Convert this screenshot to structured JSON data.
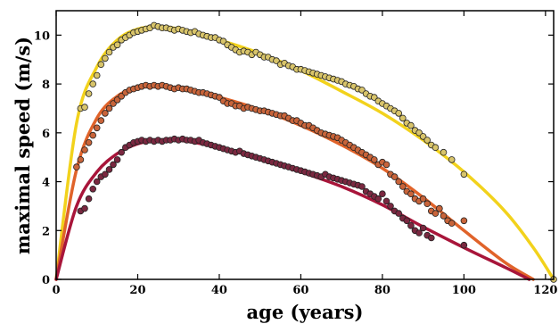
{
  "chart_data": {
    "type": "scatter",
    "title": "",
    "xlabel": "age (years)",
    "ylabel": "maximal speed (m/s)",
    "xlim": [
      0,
      122
    ],
    "ylim": [
      0,
      11
    ],
    "xticks": [
      0,
      20,
      40,
      60,
      80,
      100,
      120
    ],
    "yticks": [
      0,
      2,
      4,
      6,
      8,
      10
    ],
    "grid": false,
    "legend": "none",
    "series": [
      {
        "color": "#f2d21c",
        "marker_fill": "#d8c46a",
        "points": [
          [
            6,
            7.0
          ],
          [
            7,
            7.05
          ],
          [
            8,
            7.6
          ],
          [
            9,
            8.0
          ],
          [
            10,
            8.35
          ],
          [
            11,
            8.8
          ],
          [
            12,
            9.05
          ],
          [
            13,
            9.3
          ],
          [
            14,
            9.5
          ],
          [
            15,
            9.6
          ],
          [
            16,
            9.8
          ],
          [
            17,
            9.9
          ],
          [
            18,
            10.0
          ],
          [
            19,
            10.1
          ],
          [
            20,
            10.15
          ],
          [
            21,
            10.2
          ],
          [
            22,
            10.25
          ],
          [
            23,
            10.3
          ],
          [
            24,
            10.4
          ],
          [
            25,
            10.35
          ],
          [
            26,
            10.3
          ],
          [
            27,
            10.3
          ],
          [
            28,
            10.25
          ],
          [
            29,
            10.2
          ],
          [
            30,
            10.25
          ],
          [
            31,
            10.2
          ],
          [
            32,
            10.15
          ],
          [
            33,
            10.1
          ],
          [
            34,
            10.15
          ],
          [
            35,
            10.05
          ],
          [
            36,
            10.0
          ],
          [
            37,
            9.95
          ],
          [
            38,
            9.9
          ],
          [
            39,
            9.9
          ],
          [
            40,
            9.8
          ],
          [
            41,
            9.75
          ],
          [
            42,
            9.6
          ],
          [
            43,
            9.5
          ],
          [
            44,
            9.4
          ],
          [
            45,
            9.3
          ],
          [
            46,
            9.35
          ],
          [
            47,
            9.3
          ],
          [
            48,
            9.2
          ],
          [
            49,
            9.3
          ],
          [
            50,
            9.2
          ],
          [
            51,
            9.1
          ],
          [
            52,
            9.1
          ],
          [
            53,
            9.0
          ],
          [
            54,
            8.95
          ],
          [
            55,
            8.8
          ],
          [
            56,
            8.85
          ],
          [
            57,
            8.75
          ],
          [
            58,
            8.7
          ],
          [
            59,
            8.6
          ],
          [
            60,
            8.6
          ],
          [
            61,
            8.55
          ],
          [
            62,
            8.5
          ],
          [
            63,
            8.45
          ],
          [
            64,
            8.4
          ],
          [
            65,
            8.35
          ],
          [
            66,
            8.3
          ],
          [
            67,
            8.25
          ],
          [
            68,
            8.2
          ],
          [
            69,
            8.15
          ],
          [
            70,
            8.1
          ],
          [
            71,
            8.0
          ],
          [
            72,
            7.95
          ],
          [
            73,
            7.9
          ],
          [
            74,
            7.8
          ],
          [
            75,
            7.75
          ],
          [
            76,
            7.6
          ],
          [
            77,
            7.5
          ],
          [
            78,
            7.45
          ],
          [
            79,
            7.3
          ],
          [
            80,
            7.2
          ],
          [
            81,
            7.1
          ],
          [
            82,
            7.0
          ],
          [
            83,
            6.9
          ],
          [
            84,
            6.8
          ],
          [
            85,
            6.6
          ],
          [
            86,
            6.4
          ],
          [
            87,
            6.3
          ],
          [
            88,
            6.1
          ],
          [
            89,
            6.0
          ],
          [
            90,
            5.85
          ],
          [
            91,
            5.7
          ],
          [
            92,
            5.5
          ],
          [
            93,
            5.4
          ],
          [
            95,
            5.2
          ],
          [
            97,
            4.9
          ],
          [
            100,
            4.3
          ],
          [
            122,
            0.0
          ]
        ],
        "fit": [
          [
            0,
            0.0
          ],
          [
            5,
            6.4
          ],
          [
            10,
            8.7
          ],
          [
            15,
            9.8
          ],
          [
            20,
            10.25
          ],
          [
            25,
            10.35
          ],
          [
            30,
            10.25
          ],
          [
            40,
            9.8
          ],
          [
            50,
            9.25
          ],
          [
            60,
            8.55
          ],
          [
            70,
            7.7
          ],
          [
            80,
            6.8
          ],
          [
            90,
            5.7
          ],
          [
            100,
            4.4
          ],
          [
            110,
            2.8
          ],
          [
            117,
            1.3
          ],
          [
            122,
            0.0
          ]
        ]
      },
      {
        "color": "#e0632a",
        "marker_fill": "#c8643a",
        "points": [
          [
            5,
            4.6
          ],
          [
            6,
            4.9
          ],
          [
            7,
            5.3
          ],
          [
            8,
            5.6
          ],
          [
            9,
            5.9
          ],
          [
            10,
            6.2
          ],
          [
            11,
            6.5
          ],
          [
            12,
            6.8
          ],
          [
            13,
            7.0
          ],
          [
            14,
            7.2
          ],
          [
            15,
            7.35
          ],
          [
            16,
            7.5
          ],
          [
            17,
            7.65
          ],
          [
            18,
            7.75
          ],
          [
            19,
            7.8
          ],
          [
            20,
            7.85
          ],
          [
            21,
            7.9
          ],
          [
            22,
            7.95
          ],
          [
            23,
            7.9
          ],
          [
            24,
            7.95
          ],
          [
            25,
            7.9
          ],
          [
            26,
            7.95
          ],
          [
            27,
            7.9
          ],
          [
            28,
            7.85
          ],
          [
            29,
            7.8
          ],
          [
            30,
            7.85
          ],
          [
            31,
            7.8
          ],
          [
            32,
            7.8
          ],
          [
            33,
            7.75
          ],
          [
            34,
            7.7
          ],
          [
            35,
            7.65
          ],
          [
            36,
            7.65
          ],
          [
            37,
            7.6
          ],
          [
            38,
            7.55
          ],
          [
            39,
            7.5
          ],
          [
            40,
            7.45
          ],
          [
            41,
            7.3
          ],
          [
            42,
            7.2
          ],
          [
            43,
            7.2
          ],
          [
            44,
            7.1
          ],
          [
            45,
            7.1
          ],
          [
            46,
            7.0
          ],
          [
            47,
            7.05
          ],
          [
            48,
            7.0
          ],
          [
            49,
            6.95
          ],
          [
            50,
            6.9
          ],
          [
            51,
            6.9
          ],
          [
            52,
            6.85
          ],
          [
            53,
            6.8
          ],
          [
            54,
            6.75
          ],
          [
            55,
            6.7
          ],
          [
            56,
            6.7
          ],
          [
            57,
            6.6
          ],
          [
            58,
            6.5
          ],
          [
            59,
            6.5
          ],
          [
            60,
            6.4
          ],
          [
            61,
            6.3
          ],
          [
            62,
            6.3
          ],
          [
            63,
            6.2
          ],
          [
            64,
            6.1
          ],
          [
            65,
            6.0
          ],
          [
            66,
            5.95
          ],
          [
            67,
            5.9
          ],
          [
            68,
            5.85
          ],
          [
            69,
            5.8
          ],
          [
            70,
            5.7
          ],
          [
            71,
            5.6
          ],
          [
            72,
            5.5
          ],
          [
            73,
            5.4
          ],
          [
            74,
            5.3
          ],
          [
            75,
            5.2
          ],
          [
            76,
            5.1
          ],
          [
            77,
            5.0
          ],
          [
            78,
            4.9
          ],
          [
            79,
            4.7
          ],
          [
            80,
            4.8
          ],
          [
            81,
            4.7
          ],
          [
            82,
            4.3
          ],
          [
            83,
            4.2
          ],
          [
            84,
            4.0
          ],
          [
            85,
            3.8
          ],
          [
            86,
            3.6
          ],
          [
            87,
            3.5
          ],
          [
            88,
            3.3
          ],
          [
            89,
            3.2
          ],
          [
            90,
            3.3
          ],
          [
            91,
            3.1
          ],
          [
            92,
            2.8
          ],
          [
            93,
            2.7
          ],
          [
            94,
            2.9
          ],
          [
            95,
            2.6
          ],
          [
            96,
            2.4
          ],
          [
            97,
            2.3
          ],
          [
            100,
            2.4
          ]
        ],
        "fit": [
          [
            0,
            0.0
          ],
          [
            5,
            4.5
          ],
          [
            10,
            6.6
          ],
          [
            15,
            7.5
          ],
          [
            20,
            7.85
          ],
          [
            25,
            7.9
          ],
          [
            30,
            7.8
          ],
          [
            40,
            7.45
          ],
          [
            50,
            6.95
          ],
          [
            60,
            6.3
          ],
          [
            70,
            5.5
          ],
          [
            80,
            4.55
          ],
          [
            90,
            3.35
          ],
          [
            100,
            2.0
          ],
          [
            110,
            0.7
          ],
          [
            117,
            0.0
          ]
        ]
      },
      {
        "color": "#a8153a",
        "marker_fill": "#7a2840",
        "points": [
          [
            6,
            2.8
          ],
          [
            7,
            2.9
          ],
          [
            8,
            3.3
          ],
          [
            9,
            3.7
          ],
          [
            10,
            4.0
          ],
          [
            11,
            4.2
          ],
          [
            12,
            4.3
          ],
          [
            13,
            4.5
          ],
          [
            14,
            4.7
          ],
          [
            15,
            4.9
          ],
          [
            16,
            5.2
          ],
          [
            17,
            5.4
          ],
          [
            18,
            5.5
          ],
          [
            19,
            5.6
          ],
          [
            20,
            5.65
          ],
          [
            21,
            5.7
          ],
          [
            22,
            5.65
          ],
          [
            23,
            5.7
          ],
          [
            24,
            5.65
          ],
          [
            25,
            5.7
          ],
          [
            26,
            5.65
          ],
          [
            27,
            5.7
          ],
          [
            28,
            5.7
          ],
          [
            29,
            5.75
          ],
          [
            30,
            5.7
          ],
          [
            31,
            5.75
          ],
          [
            32,
            5.7
          ],
          [
            33,
            5.7
          ],
          [
            34,
            5.65
          ],
          [
            35,
            5.7
          ],
          [
            36,
            5.6
          ],
          [
            37,
            5.55
          ],
          [
            38,
            5.5
          ],
          [
            39,
            5.45
          ],
          [
            40,
            5.4
          ],
          [
            41,
            5.35
          ],
          [
            42,
            5.3
          ],
          [
            43,
            5.25
          ],
          [
            44,
            5.2
          ],
          [
            45,
            5.25
          ],
          [
            46,
            5.15
          ],
          [
            47,
            5.1
          ],
          [
            48,
            5.05
          ],
          [
            49,
            5.0
          ],
          [
            50,
            4.95
          ],
          [
            51,
            4.9
          ],
          [
            52,
            4.85
          ],
          [
            53,
            4.8
          ],
          [
            54,
            4.75
          ],
          [
            55,
            4.7
          ],
          [
            56,
            4.65
          ],
          [
            57,
            4.6
          ],
          [
            58,
            4.55
          ],
          [
            59,
            4.5
          ],
          [
            60,
            4.45
          ],
          [
            61,
            4.4
          ],
          [
            62,
            4.35
          ],
          [
            63,
            4.3
          ],
          [
            64,
            4.25
          ],
          [
            65,
            4.2
          ],
          [
            66,
            4.3
          ],
          [
            67,
            4.2
          ],
          [
            68,
            4.15
          ],
          [
            69,
            4.1
          ],
          [
            70,
            4.05
          ],
          [
            71,
            4.0
          ],
          [
            72,
            3.95
          ],
          [
            73,
            3.9
          ],
          [
            74,
            3.85
          ],
          [
            75,
            3.8
          ],
          [
            76,
            3.6
          ],
          [
            77,
            3.5
          ],
          [
            78,
            3.4
          ],
          [
            79,
            3.3
          ],
          [
            80,
            3.5
          ],
          [
            81,
            3.2
          ],
          [
            82,
            3.0
          ],
          [
            83,
            2.8
          ],
          [
            84,
            2.7
          ],
          [
            85,
            2.5
          ],
          [
            86,
            2.4
          ],
          [
            87,
            2.2
          ],
          [
            88,
            2.0
          ],
          [
            89,
            1.9
          ],
          [
            90,
            2.1
          ],
          [
            91,
            1.8
          ],
          [
            92,
            1.7
          ],
          [
            100,
            1.4
          ]
        ],
        "fit": [
          [
            0,
            0.0
          ],
          [
            5,
            3.0
          ],
          [
            10,
            4.4
          ],
          [
            15,
            5.15
          ],
          [
            20,
            5.55
          ],
          [
            25,
            5.7
          ],
          [
            30,
            5.7
          ],
          [
            40,
            5.4
          ],
          [
            50,
            4.95
          ],
          [
            60,
            4.4
          ],
          [
            70,
            3.8
          ],
          [
            80,
            3.05
          ],
          [
            90,
            2.15
          ],
          [
            100,
            1.3
          ],
          [
            110,
            0.5
          ],
          [
            116,
            0.0
          ]
        ]
      }
    ]
  }
}
